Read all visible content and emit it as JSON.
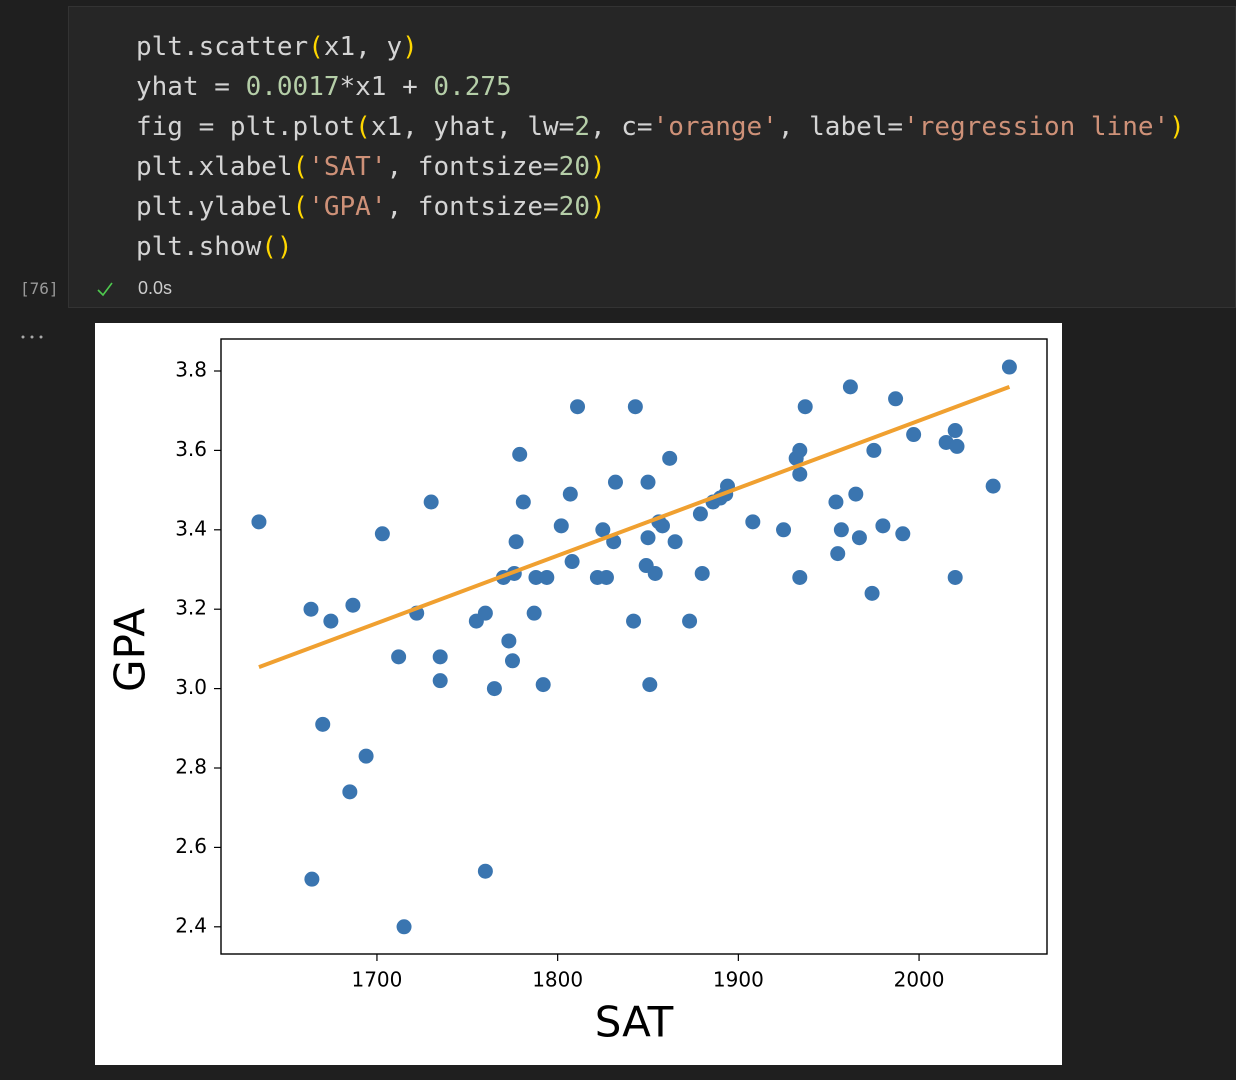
{
  "cell": {
    "execution_count": "[76]",
    "duration": "0.0s",
    "code_lines": [
      [
        {
          "text": "plt.scatter",
          "color": "#d4d4d4"
        },
        {
          "text": "(",
          "color": "#ffd700"
        },
        {
          "text": "x1, y",
          "color": "#d4d4d4"
        },
        {
          "text": ")",
          "color": "#ffd700"
        }
      ],
      [
        {
          "text": "yhat = ",
          "color": "#d4d4d4"
        },
        {
          "text": "0.0017",
          "color": "#b5cea8"
        },
        {
          "text": "*x1 + ",
          "color": "#d4d4d4"
        },
        {
          "text": "0.275",
          "color": "#b5cea8"
        }
      ],
      [
        {
          "text": "fig = plt.plot",
          "color": "#d4d4d4"
        },
        {
          "text": "(",
          "color": "#ffd700"
        },
        {
          "text": "x1, yhat, lw=",
          "color": "#d4d4d4"
        },
        {
          "text": "2",
          "color": "#b5cea8"
        },
        {
          "text": ", c=",
          "color": "#d4d4d4"
        },
        {
          "text": "'orange'",
          "color": "#ce9178"
        },
        {
          "text": ", label=",
          "color": "#d4d4d4"
        },
        {
          "text": "'regression line'",
          "color": "#ce9178"
        },
        {
          "text": ")",
          "color": "#ffd700"
        }
      ],
      [
        {
          "text": "plt.xlabel",
          "color": "#d4d4d4"
        },
        {
          "text": "(",
          "color": "#ffd700"
        },
        {
          "text": "'SAT'",
          "color": "#ce9178"
        },
        {
          "text": ", fontsize=",
          "color": "#d4d4d4"
        },
        {
          "text": "20",
          "color": "#b5cea8"
        },
        {
          "text": ")",
          "color": "#ffd700"
        }
      ],
      [
        {
          "text": "plt.ylabel",
          "color": "#d4d4d4"
        },
        {
          "text": "(",
          "color": "#ffd700"
        },
        {
          "text": "'GPA'",
          "color": "#ce9178"
        },
        {
          "text": ", fontsize=",
          "color": "#d4d4d4"
        },
        {
          "text": "20",
          "color": "#b5cea8"
        },
        {
          "text": ")",
          "color": "#ffd700"
        }
      ],
      [
        {
          "text": "plt.show",
          "color": "#d4d4d4"
        },
        {
          "text": "()",
          "color": "#ffd700"
        }
      ]
    ]
  },
  "chart_data": {
    "type": "scatter",
    "xlabel": "SAT",
    "ylabel": "GPA",
    "xlim": [
      1613.7,
      2070.8
    ],
    "ylim": [
      2.3315,
      3.8806
    ],
    "xticks": [
      1700,
      1800,
      1900,
      2000
    ],
    "yticks": [
      2.4,
      2.6,
      2.8,
      {
        "value": 3,
        "label": "3.0"
      },
      3.2,
      3.4,
      3.6,
      3.8
    ],
    "grid": false,
    "series": [
      {
        "type": "scatter",
        "color": "#3a75b0",
        "x": [
          1634.7,
          1663.5,
          1674.5,
          1686.7,
          1670,
          1685,
          1694,
          1664,
          1703,
          1712,
          1715,
          1722,
          1730,
          1735,
          1735,
          1755,
          1760,
          1760,
          1765,
          1770,
          1773,
          1775,
          1776,
          1777,
          1779,
          1781,
          1787,
          1788,
          1792,
          1794,
          1802,
          1807,
          1808,
          1811,
          1822,
          1825,
          1827,
          1831,
          1832,
          1842,
          1843,
          1849,
          1850,
          1850,
          1851,
          1854,
          1856,
          1858,
          1862,
          1865,
          1873,
          1879,
          1880,
          1886,
          1890,
          1893,
          1894,
          1908,
          1925,
          1932,
          1934,
          1934,
          1934,
          1937,
          1954,
          1955,
          1957,
          1962,
          1965,
          1967,
          1974,
          1975,
          1980,
          1987,
          1991,
          1997,
          2015,
          2020,
          2021,
          2020,
          2041,
          2050
        ],
        "values": [
          3.42,
          3.2,
          3.17,
          3.21,
          2.91,
          2.74,
          2.83,
          2.52,
          3.39,
          3.08,
          2.4,
          3.19,
          3.47,
          3.08,
          3.02,
          3.17,
          3.19,
          2.54,
          3.0,
          3.28,
          3.12,
          3.07,
          3.29,
          3.37,
          3.59,
          3.47,
          3.19,
          3.28,
          3.01,
          3.28,
          3.41,
          3.49,
          3.32,
          3.71,
          3.28,
          3.4,
          3.28,
          3.37,
          3.52,
          3.17,
          3.71,
          3.31,
          3.38,
          3.52,
          3.01,
          3.29,
          3.42,
          3.41,
          3.58,
          3.37,
          3.17,
          3.44,
          3.29,
          3.47,
          3.48,
          3.49,
          3.51,
          3.42,
          3.4,
          3.58,
          3.6,
          3.54,
          3.28,
          3.71,
          3.47,
          3.34,
          3.4,
          3.76,
          3.49,
          3.38,
          3.24,
          3.6,
          3.41,
          3.73,
          3.39,
          3.64,
          3.62,
          3.65,
          3.61,
          3.28,
          3.51,
          3.81
        ]
      },
      {
        "type": "line",
        "color": "#f0a030",
        "x": [
          1634.7,
          2050
        ],
        "values": [
          3.054,
          3.76
        ]
      }
    ]
  }
}
